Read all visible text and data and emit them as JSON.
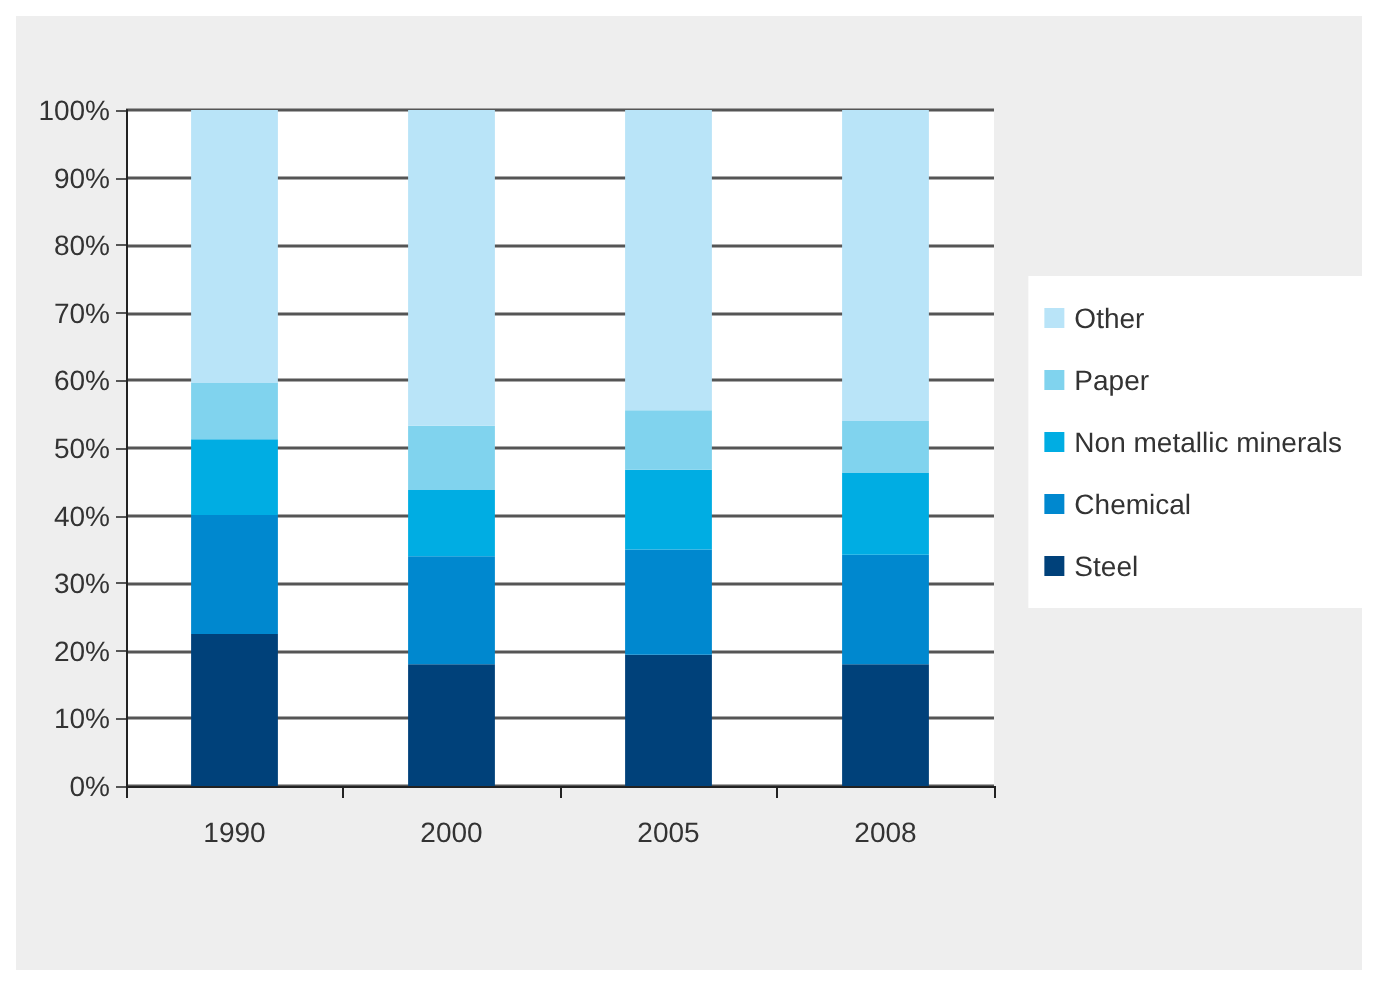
{
  "chart_data": {
    "type": "bar",
    "stacked": true,
    "categories": [
      "1990",
      "2000",
      "2005",
      "2008"
    ],
    "series": [
      {
        "name": "Steel",
        "color": "#00417a",
        "values": [
          22.5,
          18,
          19.4,
          18
        ]
      },
      {
        "name": "Chemical",
        "color": "#0088cf",
        "values": [
          17.6,
          16,
          15.6,
          16.2
        ]
      },
      {
        "name": "Non metallic minerals",
        "color": "#00ade3",
        "values": [
          11.2,
          9.8,
          11.8,
          12.1
        ]
      },
      {
        "name": "Paper",
        "color": "#80d3ee",
        "values": [
          8.3,
          9.5,
          8.8,
          7.7
        ]
      },
      {
        "name": "Other",
        "color": "#b9e4f8",
        "values": [
          40.4,
          46.7,
          44.4,
          46
        ]
      }
    ],
    "ylim": [
      0,
      100
    ],
    "yticks": [
      {
        "value": 0,
        "label": "0%"
      },
      {
        "value": 10,
        "label": "10%"
      },
      {
        "value": 20,
        "label": "20%"
      },
      {
        "value": 30,
        "label": "30%"
      },
      {
        "value": 40,
        "label": "40%"
      },
      {
        "value": 50,
        "label": "50%"
      },
      {
        "value": 60,
        "label": "60%"
      },
      {
        "value": 70,
        "label": "70%"
      },
      {
        "value": 80,
        "label": "80%"
      },
      {
        "value": 90,
        "label": "90%"
      },
      {
        "value": 100,
        "label": "100%"
      }
    ],
    "grid": "y",
    "legend": "right"
  }
}
